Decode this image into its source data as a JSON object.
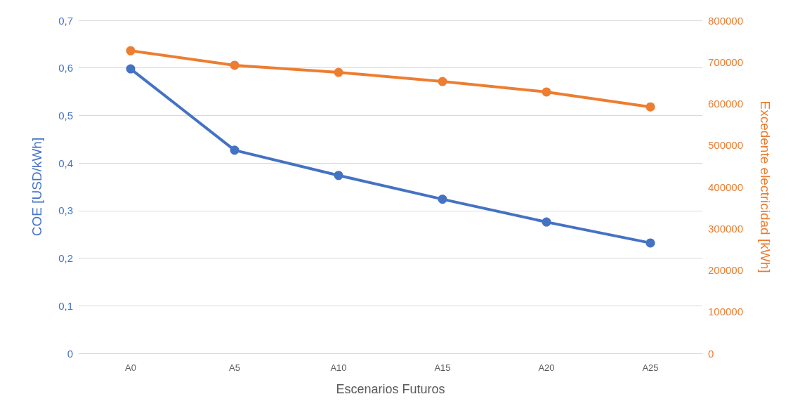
{
  "chart_data": {
    "type": "line",
    "xlabel": "Escenarios Futuros",
    "ylabel": "COE [USD/kWh]",
    "y2label": "Excedente electricidad [kWh]",
    "categories": [
      "A0",
      "A5",
      "A10",
      "A15",
      "A20",
      "A25"
    ],
    "series": [
      {
        "color": "#4472c4",
        "values": [
          0.598,
          0.427,
          0.374,
          0.324,
          0.276,
          0.232
        ]
      },
      {
        "color": "#ed7d31",
        "axis": "y2",
        "values": [
          727000,
          692000,
          675000,
          653000,
          628000,
          592000
        ]
      }
    ],
    "ylim": [
      0,
      0.7
    ],
    "yticks": [
      {
        "value": 0,
        "label": "0"
      },
      {
        "value": 0.1,
        "label": "0,1"
      },
      {
        "value": 0.2,
        "label": "0,2"
      },
      {
        "value": 0.3,
        "label": "0,3"
      },
      {
        "value": 0.4,
        "label": "0,4"
      },
      {
        "value": 0.5,
        "label": "0,5"
      },
      {
        "value": 0.6,
        "label": "0,6"
      },
      {
        "value": 0.7,
        "label": "0,7"
      }
    ],
    "y2lim": [
      0,
      800000
    ],
    "y2ticks": [
      0,
      100000,
      200000,
      300000,
      400000,
      500000,
      600000,
      700000,
      800000
    ],
    "grid": "y",
    "marker": "circle",
    "line_style": "solid"
  }
}
